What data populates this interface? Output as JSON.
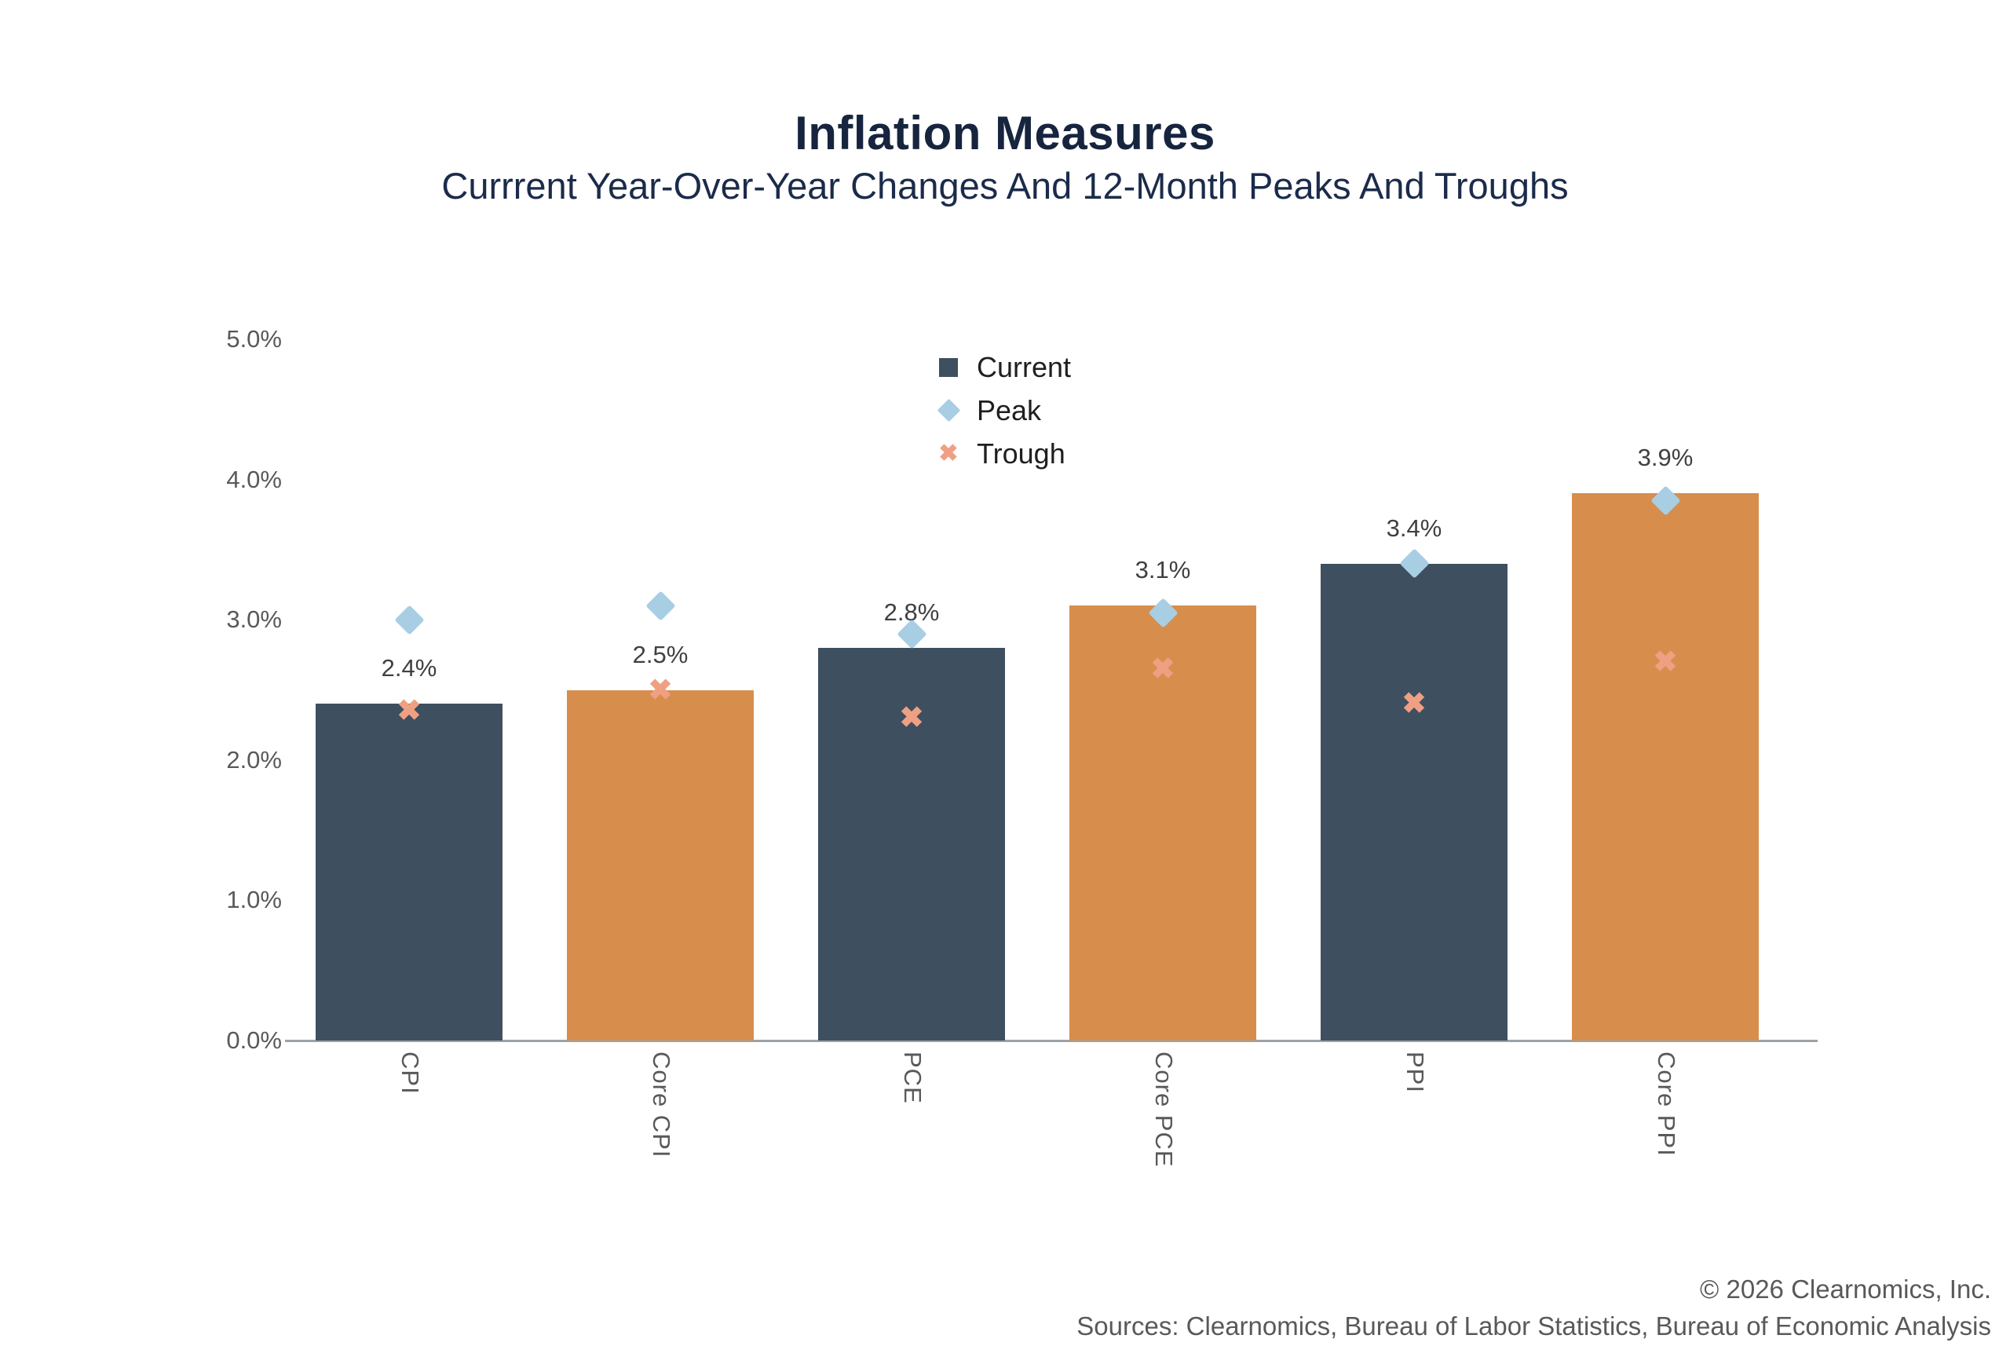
{
  "header": {
    "title": "Inflation Measures",
    "subtitle": "Currrent Year-Over-Year Changes And 12-Month Peaks And Troughs"
  },
  "chart_data": {
    "type": "bar",
    "title": "Inflation Measures",
    "subtitle": "Currrent Year-Over-Year Changes And 12-Month Peaks And Troughs",
    "categories": [
      "CPI",
      "Core CPI",
      "PCE",
      "Core PCE",
      "PPI",
      "Core PPI"
    ],
    "series": [
      {
        "name": "Current",
        "type": "bar",
        "values": [
          2.4,
          2.5,
          2.8,
          3.1,
          3.4,
          3.9
        ],
        "labels": [
          "2.4%",
          "2.5%",
          "2.8%",
          "3.1%",
          "3.4%",
          "3.9%"
        ]
      },
      {
        "name": "Peak",
        "type": "point-diamond",
        "values": [
          3.0,
          3.1,
          2.9,
          3.05,
          3.4,
          3.85
        ]
      },
      {
        "name": "Trough",
        "type": "point-x",
        "values": [
          2.35,
          2.5,
          2.3,
          2.65,
          2.4,
          2.7
        ]
      }
    ],
    "ylim": [
      0,
      5
    ],
    "ytick_labels": [
      "0.0%",
      "1.0%",
      "2.0%",
      "3.0%",
      "4.0%",
      "5.0%"
    ],
    "grid": false,
    "legend": [
      "Current",
      "Peak",
      "Trough"
    ],
    "legend_position": "upper-center",
    "bar_color_sequence": [
      "navy",
      "orange",
      "navy",
      "orange",
      "navy",
      "orange"
    ],
    "colors": {
      "bar_navy": "#3E4F5F",
      "bar_orange": "#D78E4D",
      "peak": "#A8CEE4",
      "trough": "#EFA083",
      "title": "#16243E",
      "axis_text": "#595959",
      "value_label": "#404040",
      "axis_line": "#9BA3A9",
      "legend_text": "#1F1F1F"
    },
    "trough_glyph": "✖"
  },
  "footer": {
    "copyright": "© 2026 Clearnomics, Inc.",
    "sources": "Sources: Clearnomics, Bureau of Labor Statistics, Bureau of Economic Analysis"
  }
}
